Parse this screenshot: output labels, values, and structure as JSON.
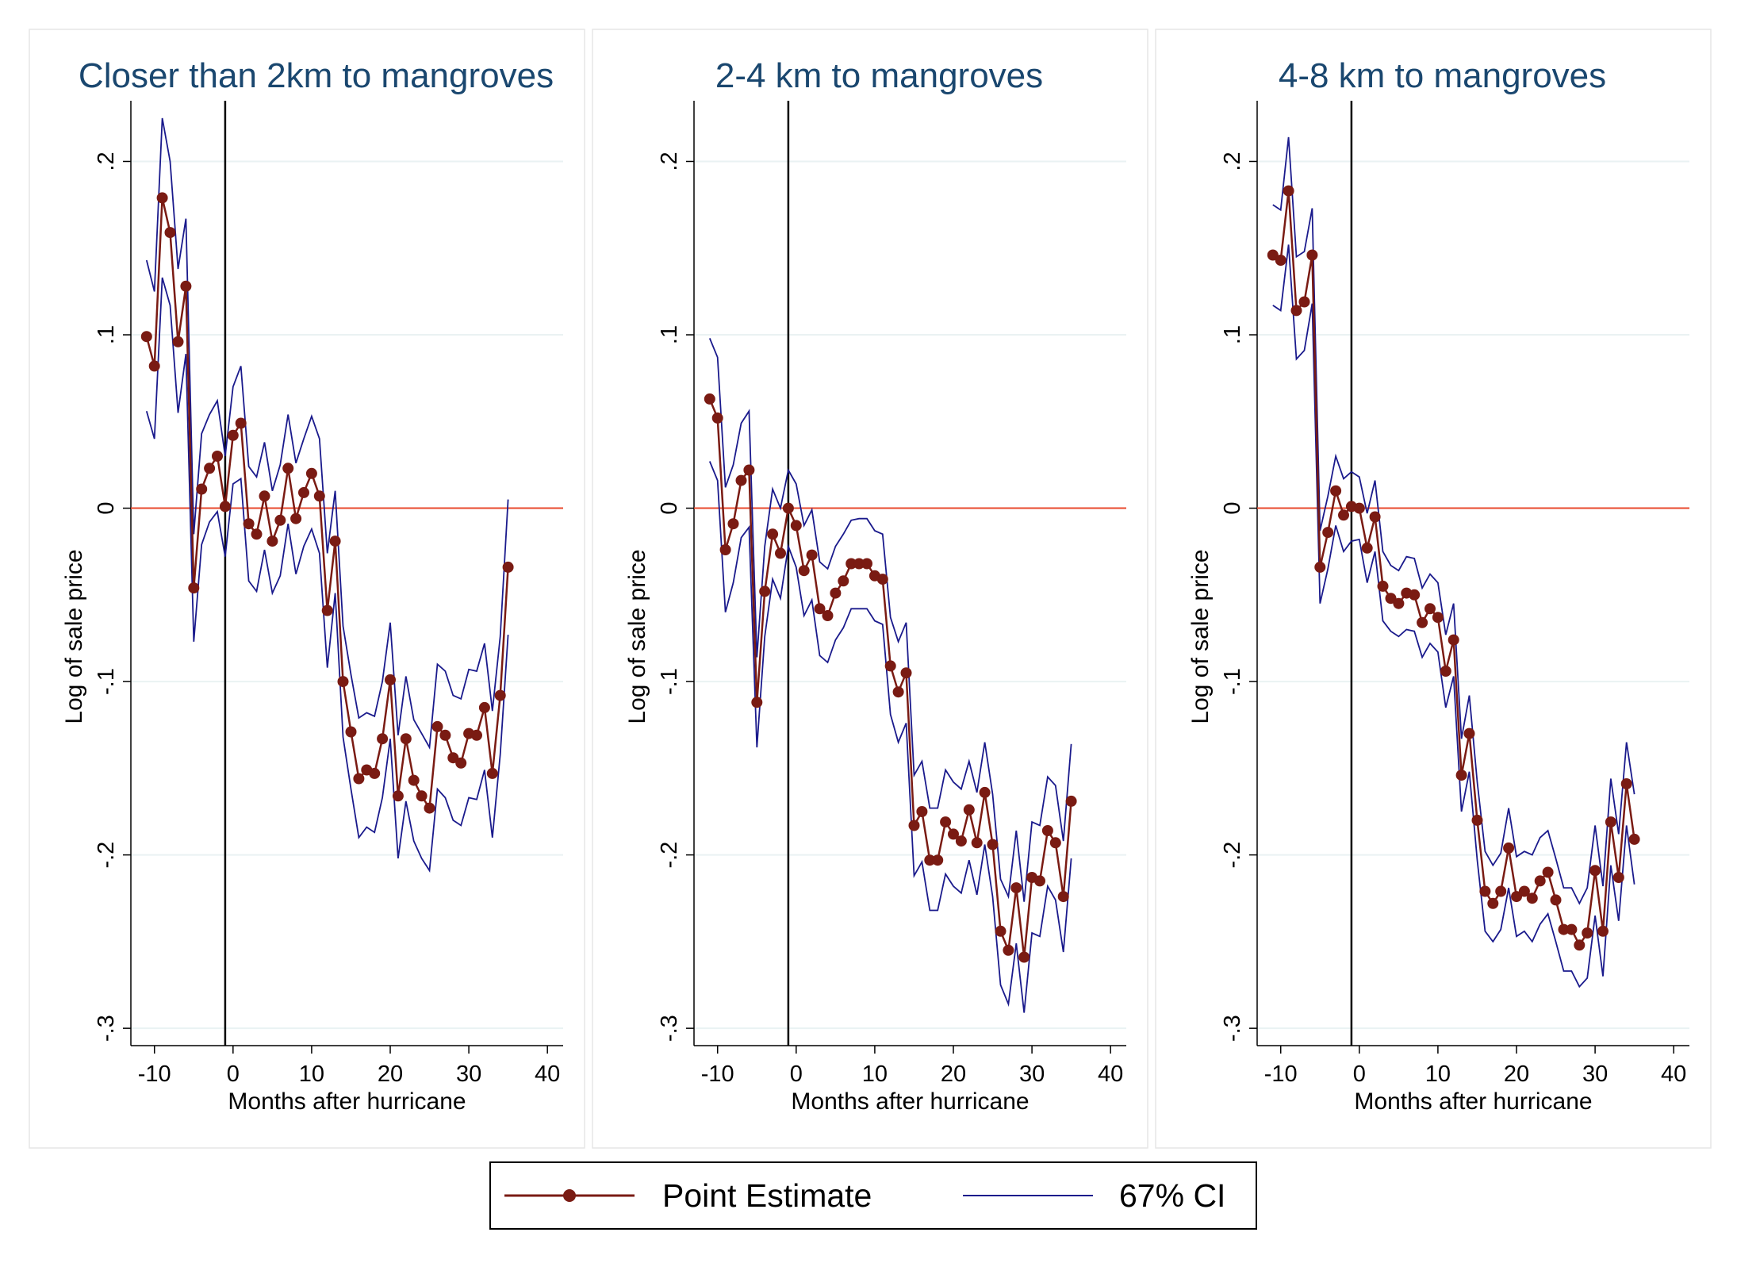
{
  "chart_data": [
    {
      "type": "line",
      "title": "Closer than 2km to mangroves",
      "xlabel": "Months after hurricane",
      "ylabel": "Log of sale price",
      "xlim": [
        -13,
        42
      ],
      "ylim": [
        -0.31,
        0.235
      ],
      "xticks": [
        -10,
        0,
        10,
        20,
        30,
        40
      ],
      "yticks": [
        0.2,
        0.1,
        0,
        -0.1,
        -0.2,
        -0.3
      ],
      "ytick_labels": [
        ".2",
        ".1",
        "0",
        "-.1",
        "-.2",
        "-.3"
      ],
      "hline": 0,
      "vline": -1,
      "grid": true,
      "x": [
        -11,
        -10,
        -9,
        -8,
        -7,
        -6,
        -5,
        -4,
        -3,
        -2,
        -1,
        0,
        1,
        2,
        3,
        4,
        5,
        6,
        7,
        8,
        9,
        10,
        11,
        12,
        13,
        14,
        15,
        16,
        17,
        18,
        19,
        20,
        21,
        22,
        23,
        24,
        25,
        26,
        27,
        28,
        29,
        30,
        31,
        32,
        33,
        34,
        35
      ],
      "series": [
        {
          "name": "Point Estimate",
          "values": [
            0.099,
            0.082,
            0.179,
            0.159,
            0.096,
            0.128,
            -0.046,
            0.011,
            0.023,
            0.03,
            0.001,
            0.042,
            0.049,
            -0.009,
            -0.015,
            0.007,
            -0.019,
            -0.007,
            0.023,
            -0.006,
            0.009,
            0.02,
            0.007,
            -0.059,
            -0.019,
            -0.1,
            -0.129,
            -0.156,
            -0.151,
            -0.153,
            -0.133,
            -0.099,
            -0.166,
            -0.133,
            -0.157,
            -0.166,
            -0.173,
            -0.126,
            -0.131,
            -0.144,
            -0.147,
            -0.13,
            -0.131,
            -0.115,
            -0.153,
            -0.108,
            -0.034
          ]
        },
        {
          "name": "67% CI",
          "values": [
            0.143,
            0.125,
            0.225,
            0.2,
            0.138,
            0.167,
            -0.015,
            0.043,
            0.054,
            0.062,
            0.03,
            0.07,
            0.082,
            0.024,
            0.018,
            0.038,
            0.01,
            0.025,
            0.054,
            0.026,
            0.04,
            0.053,
            0.04,
            -0.026,
            0.01,
            -0.068,
            -0.096,
            -0.121,
            -0.118,
            -0.12,
            -0.1,
            -0.066,
            -0.131,
            -0.097,
            -0.122,
            -0.13,
            -0.138,
            -0.09,
            -0.094,
            -0.108,
            -0.11,
            -0.093,
            -0.094,
            -0.078,
            -0.117,
            -0.074,
            0.005
          ]
        },
        {
          "values": [
            0.056,
            0.04,
            0.133,
            0.117,
            0.055,
            0.089,
            -0.077,
            -0.021,
            -0.008,
            -0.002,
            -0.028,
            0.014,
            0.017,
            -0.042,
            -0.048,
            -0.024,
            -0.049,
            -0.039,
            -0.009,
            -0.038,
            -0.022,
            -0.012,
            -0.026,
            -0.092,
            -0.049,
            -0.132,
            -0.162,
            -0.19,
            -0.184,
            -0.187,
            -0.167,
            -0.133,
            -0.202,
            -0.169,
            -0.192,
            -0.202,
            -0.209,
            -0.162,
            -0.167,
            -0.18,
            -0.183,
            -0.167,
            -0.168,
            -0.151,
            -0.19,
            -0.142,
            -0.073
          ]
        }
      ]
    },
    {
      "type": "line",
      "title": "2-4 km to mangroves",
      "xlabel": "Months after hurricane",
      "ylabel": "Log of sale price",
      "xlim": [
        -13,
        42
      ],
      "ylim": [
        -0.31,
        0.235
      ],
      "xticks": [
        -10,
        0,
        10,
        20,
        30,
        40
      ],
      "yticks": [
        0.2,
        0.1,
        0,
        -0.1,
        -0.2,
        -0.3
      ],
      "ytick_labels": [
        ".2",
        ".1",
        "0",
        "-.1",
        "-.2",
        "-.3"
      ],
      "hline": 0,
      "vline": -1,
      "grid": true,
      "x": [
        -11,
        -10,
        -9,
        -8,
        -7,
        -6,
        -5,
        -4,
        -3,
        -2,
        -1,
        0,
        1,
        2,
        3,
        4,
        5,
        6,
        7,
        8,
        9,
        10,
        11,
        12,
        13,
        14,
        15,
        16,
        17,
        18,
        19,
        20,
        21,
        22,
        23,
        24,
        25,
        26,
        27,
        28,
        29,
        30,
        31,
        32,
        33,
        34,
        35
      ],
      "series": [
        {
          "name": "Point Estimate",
          "values": [
            0.063,
            0.052,
            -0.024,
            -0.009,
            0.016,
            0.022,
            -0.112,
            -0.048,
            -0.015,
            -0.026,
            0.0,
            -0.01,
            -0.036,
            -0.027,
            -0.058,
            -0.062,
            -0.049,
            -0.042,
            -0.032,
            -0.032,
            -0.032,
            -0.039,
            -0.041,
            -0.091,
            -0.106,
            -0.095,
            -0.183,
            -0.175,
            -0.203,
            -0.203,
            -0.181,
            -0.188,
            -0.192,
            -0.174,
            -0.193,
            -0.164,
            -0.194,
            -0.244,
            -0.255,
            -0.219,
            -0.259,
            -0.213,
            -0.215,
            -0.186,
            -0.193,
            -0.224,
            -0.169
          ]
        },
        {
          "name": "67% CI",
          "values": [
            0.098,
            0.087,
            0.012,
            0.025,
            0.049,
            0.056,
            -0.086,
            -0.022,
            0.011,
            0.0,
            0.022,
            0.014,
            -0.01,
            -0.001,
            -0.031,
            -0.035,
            -0.022,
            -0.015,
            -0.007,
            -0.006,
            -0.006,
            -0.013,
            -0.015,
            -0.063,
            -0.077,
            -0.066,
            -0.154,
            -0.146,
            -0.173,
            -0.173,
            -0.151,
            -0.158,
            -0.162,
            -0.146,
            -0.164,
            -0.135,
            -0.165,
            -0.214,
            -0.224,
            -0.186,
            -0.227,
            -0.181,
            -0.183,
            -0.155,
            -0.16,
            -0.192,
            -0.136
          ]
        },
        {
          "values": [
            0.027,
            0.016,
            -0.06,
            -0.043,
            -0.017,
            -0.011,
            -0.138,
            -0.074,
            -0.041,
            -0.052,
            -0.022,
            -0.034,
            -0.062,
            -0.053,
            -0.085,
            -0.089,
            -0.076,
            -0.069,
            -0.058,
            -0.058,
            -0.058,
            -0.065,
            -0.067,
            -0.119,
            -0.135,
            -0.124,
            -0.212,
            -0.204,
            -0.232,
            -0.232,
            -0.211,
            -0.218,
            -0.222,
            -0.203,
            -0.223,
            -0.194,
            -0.224,
            -0.275,
            -0.286,
            -0.251,
            -0.291,
            -0.245,
            -0.247,
            -0.218,
            -0.226,
            -0.256,
            -0.202
          ]
        }
      ]
    },
    {
      "type": "line",
      "title": "4-8 km to mangroves",
      "xlabel": "Months after hurricane",
      "ylabel": "Log of sale price",
      "xlim": [
        -13,
        42
      ],
      "ylim": [
        -0.31,
        0.235
      ],
      "xticks": [
        -10,
        0,
        10,
        20,
        30,
        40
      ],
      "yticks": [
        0.2,
        0.1,
        0,
        -0.1,
        -0.2,
        -0.3
      ],
      "ytick_labels": [
        ".2",
        ".1",
        "0",
        "-.1",
        "-.2",
        "-.3"
      ],
      "hline": 0,
      "vline": -1,
      "grid": true,
      "x": [
        -11,
        -10,
        -9,
        -8,
        -7,
        -6,
        -5,
        -4,
        -3,
        -2,
        -1,
        0,
        1,
        2,
        3,
        4,
        5,
        6,
        7,
        8,
        9,
        10,
        11,
        12,
        13,
        14,
        15,
        16,
        17,
        18,
        19,
        20,
        21,
        22,
        23,
        24,
        25,
        26,
        27,
        28,
        29,
        30,
        31,
        32,
        33,
        34,
        35
      ],
      "series": [
        {
          "name": "Point Estimate",
          "values": [
            0.146,
            0.143,
            0.183,
            0.114,
            0.119,
            0.146,
            -0.034,
            -0.014,
            0.01,
            -0.004,
            0.001,
            0.0,
            -0.023,
            -0.005,
            -0.045,
            -0.052,
            -0.055,
            -0.049,
            -0.05,
            -0.066,
            -0.058,
            -0.063,
            -0.094,
            -0.076,
            -0.154,
            -0.13,
            -0.18,
            -0.221,
            -0.228,
            -0.221,
            -0.196,
            -0.224,
            -0.221,
            -0.225,
            -0.215,
            -0.21,
            -0.226,
            -0.243,
            -0.243,
            -0.252,
            -0.245,
            -0.209,
            -0.244,
            -0.181,
            -0.213,
            -0.159,
            -0.191
          ]
        },
        {
          "name": "67% CI",
          "values": [
            0.175,
            0.172,
            0.214,
            0.145,
            0.148,
            0.173,
            -0.013,
            0.007,
            0.03,
            0.017,
            0.021,
            0.018,
            -0.003,
            0.016,
            -0.025,
            -0.033,
            -0.036,
            -0.028,
            -0.029,
            -0.046,
            -0.038,
            -0.043,
            -0.073,
            -0.055,
            -0.133,
            -0.108,
            -0.158,
            -0.198,
            -0.206,
            -0.199,
            -0.173,
            -0.201,
            -0.198,
            -0.2,
            -0.19,
            -0.186,
            -0.202,
            -0.219,
            -0.219,
            -0.228,
            -0.219,
            -0.183,
            -0.218,
            -0.156,
            -0.188,
            -0.135,
            -0.165
          ]
        },
        {
          "values": [
            0.117,
            0.114,
            0.152,
            0.086,
            0.091,
            0.118,
            -0.055,
            -0.035,
            -0.01,
            -0.025,
            -0.019,
            -0.018,
            -0.043,
            -0.025,
            -0.065,
            -0.071,
            -0.074,
            -0.07,
            -0.071,
            -0.086,
            -0.078,
            -0.083,
            -0.115,
            -0.097,
            -0.175,
            -0.152,
            -0.203,
            -0.244,
            -0.25,
            -0.243,
            -0.219,
            -0.247,
            -0.244,
            -0.25,
            -0.24,
            -0.234,
            -0.25,
            -0.267,
            -0.267,
            -0.276,
            -0.271,
            -0.235,
            -0.27,
            -0.206,
            -0.238,
            -0.183,
            -0.217
          ]
        }
      ]
    }
  ],
  "legend": {
    "placement": "bottom",
    "items": [
      {
        "label": "Point Estimate",
        "color": "#7a1b13",
        "marker": "circle"
      },
      {
        "label": "67% CI",
        "color": "#1a1a8c",
        "marker": "none"
      }
    ]
  },
  "colors": {
    "point_estimate": "#7a1b13",
    "ci": "#1a1a8c",
    "zero_line": "#e8482c",
    "event_line": "#000000",
    "title": "#1a476f",
    "grid": "#eaf2f3"
  }
}
